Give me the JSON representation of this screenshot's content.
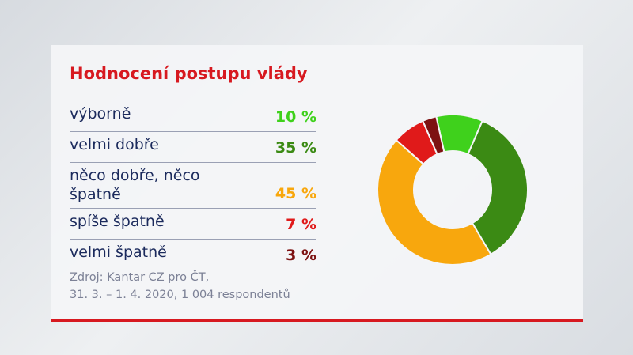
{
  "chart_data": {
    "type": "donut",
    "title": "Hodnocení postupu vlády",
    "categories": [
      "výborně",
      "velmi dobře",
      "něco dobře, něco špatně",
      "spíše špatně",
      "velmi špatně"
    ],
    "values": [
      10,
      35,
      45,
      7,
      3
    ],
    "value_labels": [
      "10 %",
      "35 %",
      "45 %",
      "7 %",
      "3 %"
    ],
    "colors": [
      "#3fd11c",
      "#3b8a14",
      "#f8a70d",
      "#e01a1a",
      "#7d1212"
    ],
    "source": [
      "Zdroj: Kantar CZ pro ČT,",
      "31. 3. – 1. 4. 2020, 1 004 respondentů"
    ]
  }
}
